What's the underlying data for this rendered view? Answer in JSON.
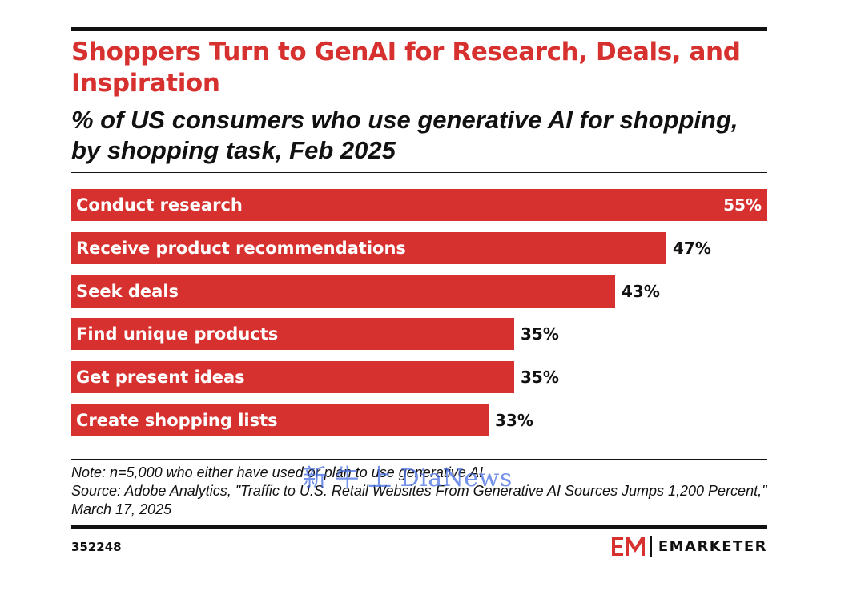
{
  "title": "Shoppers Turn to GenAI for Research, Deals, and Inspiration",
  "subtitle": "% of US consumers who use generative AI for shopping, by shopping task, Feb 2025",
  "chart_data": {
    "type": "bar",
    "orientation": "horizontal",
    "categories": [
      "Conduct research",
      "Receive product recommendations",
      "Seek deals",
      "Find unique products",
      "Get present ideas",
      "Create shopping lists"
    ],
    "values": [
      55,
      47,
      43,
      35,
      35,
      33
    ],
    "value_labels": [
      "55%",
      "47%",
      "43%",
      "35%",
      "35%",
      "33%"
    ],
    "xlim": [
      0,
      55
    ],
    "grid": false,
    "legend": "none",
    "bar_color": "#d7312f"
  },
  "notes": {
    "note": "Note: n=5,000 who either have used or plan to use generative AI",
    "source": "Source: Adobe Analytics, \"Traffic to U.S. Retail Websites From Generative AI Sources Jumps 1,200 Percent,\" March 17, 2025"
  },
  "footer": {
    "chart_id": "352248",
    "brand": "EMARKETER",
    "logo_icon": "em-logo-icon"
  },
  "watermark": "新 牛 上 DiaNews",
  "colors": {
    "accent": "#d7312f",
    "text": "#111111",
    "watermark": "#466ee1"
  }
}
